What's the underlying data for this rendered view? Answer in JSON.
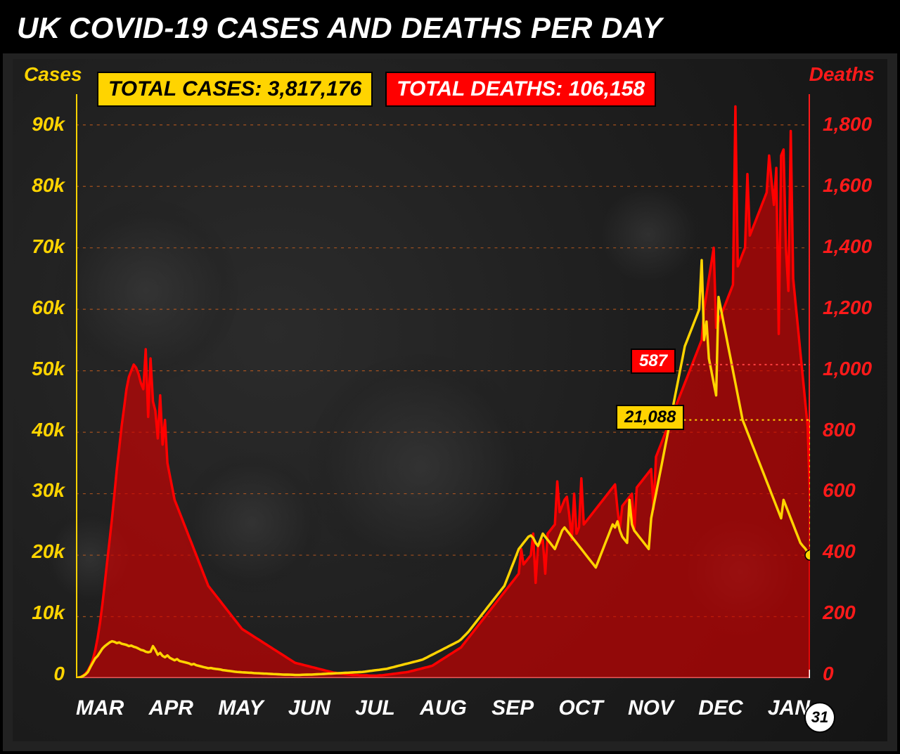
{
  "title": "UK COVID-19 CASES AND DEATHS PER DAY",
  "title_fontsize": 42,
  "title_color": "#ffffff",
  "title_bg": "#000000",
  "total_cases_badge": {
    "label": "TOTAL CASES: 3,817,176",
    "bg": "#ffd400",
    "fg": "#000000",
    "fontsize": 30
  },
  "total_deaths_badge": {
    "label": "TOTAL DEATHS: 106,158",
    "bg": "#ff0000",
    "fg": "#ffffff",
    "fontsize": 30
  },
  "chart": {
    "type": "dual-axis-line-area",
    "background_color": "#1d1d1d",
    "grid_color_major": "rgba(255,50,50,0.35)",
    "grid_color_minor": "rgba(255,210,0,0.35)",
    "grid_dash": "4 6",
    "left_axis": {
      "label": "Cases",
      "label_color": "#ffd400",
      "tick_color": "#ffd400",
      "min": 0,
      "max": 95000,
      "ticks": [
        0,
        10000,
        20000,
        30000,
        40000,
        50000,
        60000,
        70000,
        80000,
        90000
      ],
      "tick_labels": [
        "0",
        "10k",
        "20k",
        "30k",
        "40k",
        "50k",
        "60k",
        "70k",
        "80k",
        "90k"
      ],
      "tick_fontsize": 28,
      "label_fontsize": 28
    },
    "right_axis": {
      "label": "Deaths",
      "label_color": "#ff1a1a",
      "tick_color": "#ff1a1a",
      "min": 0,
      "max": 1900,
      "ticks": [
        0,
        200,
        400,
        600,
        800,
        1000,
        1200,
        1400,
        1600,
        1800
      ],
      "tick_labels": [
        "0",
        "200",
        "400",
        "600",
        "800",
        "1,000",
        "1,200",
        "1,400",
        "1,600",
        "1,800"
      ],
      "tick_fontsize": 28,
      "label_fontsize": 28
    },
    "months": [
      "MAR",
      "APR",
      "MAY",
      "JUN",
      "JUL",
      "AUG",
      "SEP",
      "OCT",
      "NOV",
      "DEC",
      "JAN"
    ],
    "month_fontsize": 30,
    "month_color": "#ffffff",
    "date_marker": {
      "label": "31",
      "fontsize": 22,
      "bg": "#ffffff",
      "fg": "#000000"
    },
    "callouts": {
      "deaths_last": {
        "value": "587",
        "bg": "#ff0000",
        "fg": "#ffffff",
        "fontsize": 24,
        "y_value": 1020,
        "axis": "right"
      },
      "cases_last": {
        "value": "21,088",
        "bg": "#ffd400",
        "fg": "#000000",
        "fontsize": 24,
        "y_value": 840,
        "axis": "right"
      }
    },
    "cases_series": {
      "color": "#ffd400",
      "line_width": 3.5,
      "values": [
        50,
        80,
        150,
        350,
        600,
        1000,
        1800,
        2500,
        3200,
        3600,
        4200,
        4800,
        5200,
        5500,
        5800,
        6000,
        5900,
        5700,
        5800,
        5600,
        5500,
        5400,
        5200,
        5300,
        5100,
        5000,
        4800,
        4600,
        4500,
        4300,
        4200,
        4300,
        5200,
        4600,
        3800,
        4100,
        3600,
        3400,
        3700,
        3300,
        3100,
        2900,
        3100,
        2800,
        2700,
        2600,
        2500,
        2400,
        2200,
        2300,
        2100,
        2000,
        1900,
        1800,
        1700,
        1600,
        1650,
        1550,
        1500,
        1450,
        1400,
        1300,
        1250,
        1200,
        1150,
        1100,
        1050,
        1000,
        980,
        950,
        920,
        900,
        880,
        860,
        820,
        800,
        780,
        760,
        740,
        720,
        700,
        680,
        660,
        640,
        620,
        600,
        580,
        560,
        560,
        550,
        540,
        520,
        520,
        520,
        540,
        550,
        560,
        570,
        580,
        600,
        620,
        640,
        660,
        680,
        700,
        720,
        740,
        760,
        780,
        800,
        820,
        840,
        860,
        880,
        900,
        920,
        940,
        960,
        980,
        1000,
        1050,
        1100,
        1150,
        1200,
        1250,
        1300,
        1350,
        1400,
        1450,
        1500,
        1600,
        1700,
        1800,
        1900,
        2000,
        2100,
        2200,
        2300,
        2400,
        2500,
        2600,
        2700,
        2800,
        2900,
        3000,
        3200,
        3400,
        3600,
        3800,
        4000,
        4200,
        4400,
        4600,
        4800,
        5000,
        5200,
        5400,
        5600,
        5800,
        6000,
        6300,
        6700,
        7100,
        7500,
        8000,
        8500,
        9000,
        9500,
        10000,
        10500,
        11000,
        11500,
        12000,
        12500,
        13000,
        13500,
        14000,
        14500,
        15000,
        16000,
        17000,
        18000,
        19000,
        20000,
        21000,
        21500,
        22000,
        22500,
        23000,
        23200,
        22800,
        22000,
        21500,
        22500,
        23500,
        23000,
        22500,
        22000,
        21500,
        21000,
        22000,
        23000,
        24000,
        24500,
        24000,
        23500,
        23000,
        22500,
        22000,
        21500,
        21000,
        20500,
        20000,
        19500,
        19000,
        18500,
        18000,
        19000,
        20000,
        21000,
        22000,
        23000,
        24000,
        25000,
        24500,
        25500,
        24000,
        23000,
        22500,
        22000,
        29000,
        25000,
        24000,
        23500,
        23000,
        22500,
        22000,
        21500,
        21000,
        26000,
        28000,
        30000,
        32000,
        34000,
        36000,
        38000,
        40000,
        42000,
        44000,
        46000,
        48000,
        50000,
        52000,
        54000,
        55000,
        56000,
        57000,
        58000,
        59000,
        60000,
        68000,
        55000,
        58000,
        52000,
        50000,
        48000,
        46000,
        62000,
        60000,
        58000,
        56000,
        54000,
        52000,
        50000,
        48000,
        46000,
        44000,
        42000,
        41000,
        40000,
        39000,
        38000,
        37000,
        36000,
        35000,
        34000,
        33000,
        32000,
        31000,
        30000,
        29000,
        28000,
        27000,
        26000,
        29000,
        28000,
        27000,
        26000,
        25000,
        24000,
        23000,
        22000,
        21500,
        21088,
        20500,
        20000
      ]
    },
    "deaths_series": {
      "color": "#ff0000",
      "fill_color": "rgba(210,0,0,0.65)",
      "line_width": 3.5,
      "values": [
        1,
        2,
        4,
        8,
        15,
        25,
        40,
        60,
        90,
        130,
        180,
        240,
        310,
        380,
        450,
        520,
        600,
        680,
        750,
        820,
        880,
        940,
        980,
        1000,
        1020,
        1010,
        990,
        960,
        940,
        1070,
        850,
        1040,
        900,
        870,
        780,
        920,
        760,
        840,
        700,
        660,
        620,
        580,
        560,
        540,
        520,
        500,
        480,
        460,
        440,
        420,
        400,
        380,
        360,
        340,
        320,
        300,
        290,
        280,
        270,
        260,
        250,
        240,
        230,
        220,
        210,
        200,
        190,
        180,
        170,
        160,
        155,
        150,
        145,
        140,
        135,
        130,
        125,
        120,
        115,
        110,
        105,
        100,
        95,
        90,
        85,
        80,
        75,
        70,
        65,
        60,
        55,
        50,
        48,
        46,
        44,
        42,
        40,
        38,
        36,
        34,
        32,
        30,
        28,
        26,
        24,
        22,
        20,
        18,
        17,
        16,
        15,
        14,
        13,
        12,
        11,
        10,
        10,
        10,
        9,
        9,
        9,
        9,
        8,
        8,
        8,
        8,
        9,
        9,
        10,
        11,
        12,
        13,
        14,
        15,
        16,
        17,
        18,
        19,
        20,
        22,
        24,
        26,
        28,
        30,
        32,
        34,
        36,
        38,
        40,
        45,
        50,
        55,
        60,
        65,
        70,
        75,
        80,
        85,
        90,
        95,
        100,
        110,
        120,
        130,
        140,
        150,
        160,
        170,
        180,
        190,
        200,
        210,
        220,
        230,
        240,
        250,
        260,
        270,
        280,
        290,
        300,
        310,
        320,
        330,
        340,
        420,
        370,
        380,
        390,
        400,
        470,
        310,
        430,
        440,
        450,
        340,
        470,
        480,
        490,
        500,
        640,
        540,
        560,
        580,
        590,
        530,
        450,
        600,
        470,
        490,
        650,
        500,
        510,
        520,
        530,
        540,
        550,
        560,
        570,
        580,
        590,
        600,
        610,
        620,
        630,
        550,
        490,
        560,
        570,
        580,
        590,
        600,
        480,
        620,
        630,
        640,
        650,
        660,
        670,
        680,
        550,
        720,
        740,
        760,
        780,
        800,
        820,
        840,
        860,
        880,
        900,
        920,
        940,
        960,
        980,
        1000,
        1020,
        1040,
        1060,
        1080,
        1100,
        1200,
        1250,
        1300,
        1350,
        1400,
        1140,
        1160,
        1180,
        1200,
        1220,
        1240,
        1260,
        1280,
        1860,
        1340,
        1360,
        1380,
        1400,
        1640,
        1440,
        1460,
        1480,
        1500,
        1520,
        1540,
        1560,
        1580,
        1700,
        1620,
        1540,
        1660,
        1120,
        1700,
        1720,
        1400,
        1260,
        1780,
        1300,
        1220,
        1140,
        1060,
        980,
        900,
        820,
        587
      ]
    }
  }
}
